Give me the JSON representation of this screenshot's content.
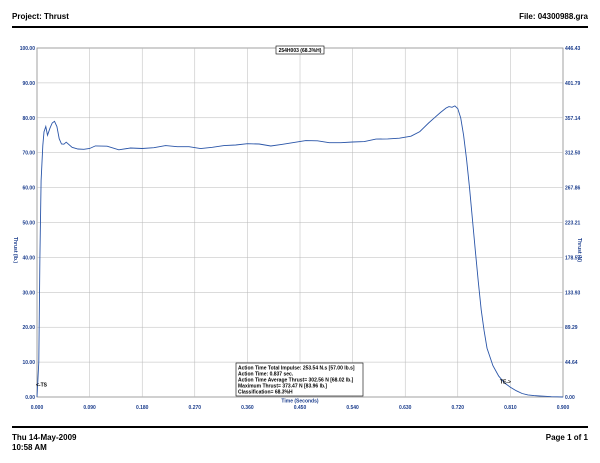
{
  "header": {
    "project": "Project: Thrust",
    "file": "File: 04300988.gra"
  },
  "footer": {
    "date": "Thu 14-May-2009",
    "time": "10:58 AM",
    "page": "Page 1 of 1"
  },
  "chart_data": {
    "type": "line",
    "title": "254H003 (68.3%H)",
    "xlabel": "Time (Seconds)",
    "ylabel_left": "Thrust (lb.)",
    "ylabel_right": "Thrust (N)",
    "xlim": [
      0,
      0.9
    ],
    "ylim_left": [
      0,
      100
    ],
    "ylim_right": [
      0,
      446.43
    ],
    "x_ticks": [
      "0.000",
      "0.090",
      "0.180",
      "0.270",
      "0.360",
      "0.450",
      "0.540",
      "0.630",
      "0.720",
      "0.810",
      "0.900"
    ],
    "y_ticks_left": [
      "0.00",
      "10.00",
      "20.00",
      "30.00",
      "40.00",
      "50.00",
      "60.00",
      "70.00",
      "80.00",
      "90.00",
      "100.00"
    ],
    "y_ticks_right": [
      "0.00",
      "44.64",
      "89.29",
      "133.93",
      "178.57",
      "223.21",
      "267.86",
      "312.50",
      "357.14",
      "401.79",
      "446.43"
    ],
    "grid": true,
    "series": [
      {
        "color": "#2a55a8",
        "x": [
          0.0,
          0.003,
          0.005,
          0.007,
          0.01,
          0.012,
          0.015,
          0.018,
          0.022,
          0.026,
          0.03,
          0.034,
          0.038,
          0.042,
          0.046,
          0.05,
          0.06,
          0.07,
          0.08,
          0.09,
          0.1,
          0.12,
          0.14,
          0.16,
          0.18,
          0.2,
          0.22,
          0.24,
          0.26,
          0.28,
          0.3,
          0.32,
          0.34,
          0.36,
          0.38,
          0.4,
          0.42,
          0.44,
          0.46,
          0.48,
          0.5,
          0.52,
          0.54,
          0.56,
          0.58,
          0.6,
          0.62,
          0.64,
          0.655,
          0.67,
          0.68,
          0.69,
          0.7,
          0.705,
          0.71,
          0.715,
          0.72,
          0.725,
          0.73,
          0.735,
          0.74,
          0.745,
          0.75,
          0.755,
          0.76,
          0.765,
          0.77,
          0.78,
          0.79,
          0.8,
          0.81,
          0.82,
          0.83,
          0.84,
          0.85,
          0.86,
          0.87,
          0.88,
          0.89,
          0.9
        ],
        "y": [
          0.0,
          10.0,
          40.0,
          62.0,
          72.0,
          76.0,
          77.5,
          75.0,
          77.0,
          78.5,
          79.0,
          77.5,
          74.0,
          72.5,
          72.0,
          72.8,
          71.8,
          71.5,
          71.2,
          71.0,
          71.5,
          71.6,
          71.0,
          71.8,
          71.5,
          71.3,
          71.6,
          71.4,
          71.8,
          71.6,
          71.9,
          72.0,
          71.8,
          72.2,
          72.5,
          72.3,
          72.8,
          73.0,
          73.1,
          73.0,
          72.8,
          73.2,
          73.5,
          73.3,
          73.6,
          73.5,
          74.0,
          75.0,
          76.5,
          78.5,
          80.0,
          81.5,
          82.8,
          83.2,
          83.0,
          83.4,
          82.6,
          80.0,
          75.0,
          68.0,
          60.0,
          51.0,
          42.0,
          33.0,
          25.0,
          19.0,
          14.0,
          9.0,
          6.0,
          4.0,
          2.8,
          1.8,
          1.0,
          0.6,
          0.4,
          0.3,
          0.2,
          0.1,
          0.05,
          0.0
        ]
      }
    ],
    "markers": [
      {
        "label": "<-TS",
        "x": 0.0,
        "y": 3.0
      },
      {
        "label": "TE->",
        "x": 0.816,
        "y": 3.8
      }
    ],
    "summary": [
      "Action Time Total Impulse: 253.54 N.s [57.00 lb.s]",
      "Action Time: 0.837 sec.",
      "Action Time Average Thrust= 302.56 N [68.02 lb.]",
      "Maximum Thrust= 373.47 N [83.96 lb.]",
      "Classification= 68.3%H"
    ]
  }
}
